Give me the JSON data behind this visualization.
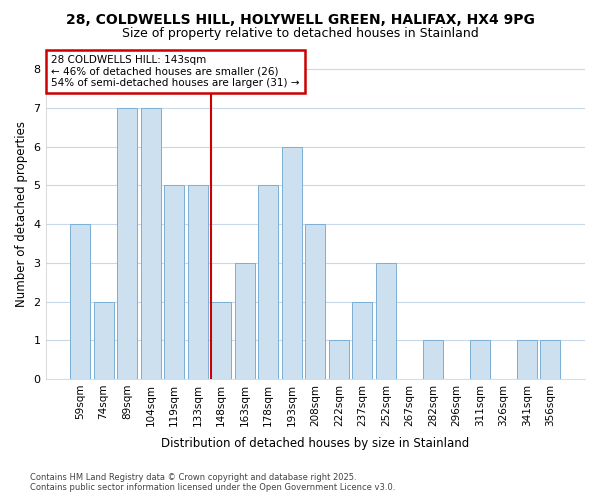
{
  "title_line1": "28, COLDWELLS HILL, HOLYWELL GREEN, HALIFAX, HX4 9PG",
  "title_line2": "Size of property relative to detached houses in Stainland",
  "xlabel": "Distribution of detached houses by size in Stainland",
  "ylabel": "Number of detached properties",
  "footer": "Contains HM Land Registry data © Crown copyright and database right 2025.\nContains public sector information licensed under the Open Government Licence v3.0.",
  "categories": [
    "59sqm",
    "74sqm",
    "89sqm",
    "104sqm",
    "119sqm",
    "133sqm",
    "148sqm",
    "163sqm",
    "178sqm",
    "193sqm",
    "208sqm",
    "222sqm",
    "237sqm",
    "252sqm",
    "267sqm",
    "282sqm",
    "296sqm",
    "311sqm",
    "326sqm",
    "341sqm",
    "356sqm"
  ],
  "values": [
    4,
    2,
    7,
    7,
    5,
    5,
    2,
    3,
    5,
    6,
    4,
    1,
    2,
    3,
    0,
    1,
    0,
    1,
    0,
    1,
    1
  ],
  "bar_color": "#cde0f0",
  "bar_edge_color": "#7bafd4",
  "background_color": "#ffffff",
  "plot_bg_color": "#ffffff",
  "grid_color": "#c8d8e8",
  "red_line_x": 5.57,
  "annotation_text": "28 COLDWELLS HILL: 143sqm\n← 46% of detached houses are smaller (26)\n54% of semi-detached houses are larger (31) →",
  "annotation_box_color": "#ffffff",
  "annotation_box_edge_color": "#cc0000",
  "ylim": [
    0,
    8.5
  ],
  "yticks": [
    0,
    1,
    2,
    3,
    4,
    5,
    6,
    7,
    8
  ]
}
